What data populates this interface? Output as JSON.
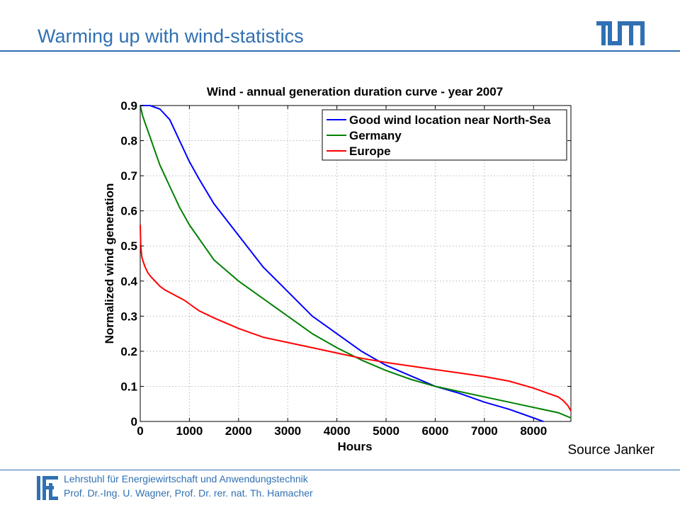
{
  "header": {
    "title": "Warming up with wind-statistics"
  },
  "footer": {
    "line1": "Lehrstuhl für Energiewirtschaft und Anwendungstechnik",
    "line2": "Prof. Dr.-Ing. U. Wagner, Prof. Dr. rer. nat. Th. Hamacher"
  },
  "source_note": "Source Janker",
  "colors": {
    "accent": "#3070b3"
  },
  "chart_data": {
    "type": "line",
    "title": "Wind - annual generation duration curve - year 2007",
    "xlabel": "Hours",
    "ylabel": "Normalized wind generation",
    "xlim": [
      0,
      8760
    ],
    "ylim": [
      0,
      0.9
    ],
    "xticks": [
      0,
      1000,
      2000,
      3000,
      4000,
      5000,
      6000,
      7000,
      8000
    ],
    "yticks": [
      0,
      0.1,
      0.2,
      0.3,
      0.4,
      0.5,
      0.6,
      0.7,
      0.8,
      0.9
    ],
    "ytick_labels": [
      "0",
      "0.1",
      "0.2",
      "0.3",
      "0.4",
      "0.5",
      "0.6",
      "0.7",
      "0.8",
      "0.9"
    ],
    "grid": true,
    "legend": "top-right",
    "series": [
      {
        "name": "Good wind location near North-Sea",
        "color": "#0000ff",
        "x": [
          0,
          200,
          400,
          600,
          800,
          1000,
          1200,
          1500,
          2000,
          2500,
          3000,
          3500,
          4000,
          4500,
          5000,
          5500,
          6000,
          6500,
          7000,
          7500,
          8000,
          8200
        ],
        "y": [
          0.9,
          0.9,
          0.89,
          0.86,
          0.8,
          0.74,
          0.69,
          0.62,
          0.53,
          0.44,
          0.37,
          0.3,
          0.25,
          0.2,
          0.16,
          0.13,
          0.1,
          0.08,
          0.055,
          0.035,
          0.01,
          0.0
        ]
      },
      {
        "name": "Germany",
        "color": "#008000",
        "x": [
          0,
          50,
          100,
          200,
          300,
          400,
          500,
          600,
          800,
          1000,
          1200,
          1500,
          2000,
          2500,
          3000,
          3500,
          4000,
          4500,
          5000,
          5500,
          6000,
          6500,
          7000,
          7500,
          8000,
          8500,
          8760
        ],
        "y": [
          0.9,
          0.87,
          0.85,
          0.81,
          0.77,
          0.73,
          0.7,
          0.67,
          0.61,
          0.56,
          0.52,
          0.46,
          0.4,
          0.35,
          0.3,
          0.25,
          0.21,
          0.175,
          0.145,
          0.12,
          0.1,
          0.085,
          0.07,
          0.055,
          0.04,
          0.025,
          0.01
        ]
      },
      {
        "name": "Europe",
        "color": "#ff0000",
        "x": [
          0,
          10,
          30,
          60,
          100,
          150,
          200,
          300,
          400,
          500,
          700,
          900,
          1000,
          1200,
          1500,
          2000,
          2500,
          3000,
          3500,
          4000,
          4500,
          5000,
          5500,
          6000,
          6500,
          7000,
          7500,
          8000,
          8300,
          8500,
          8600,
          8700,
          8760
        ],
        "y": [
          0.56,
          0.5,
          0.47,
          0.455,
          0.44,
          0.425,
          0.415,
          0.4,
          0.385,
          0.375,
          0.36,
          0.345,
          0.335,
          0.315,
          0.295,
          0.265,
          0.24,
          0.225,
          0.21,
          0.195,
          0.18,
          0.168,
          0.158,
          0.148,
          0.138,
          0.128,
          0.115,
          0.095,
          0.08,
          0.07,
          0.06,
          0.045,
          0.03
        ]
      }
    ]
  }
}
